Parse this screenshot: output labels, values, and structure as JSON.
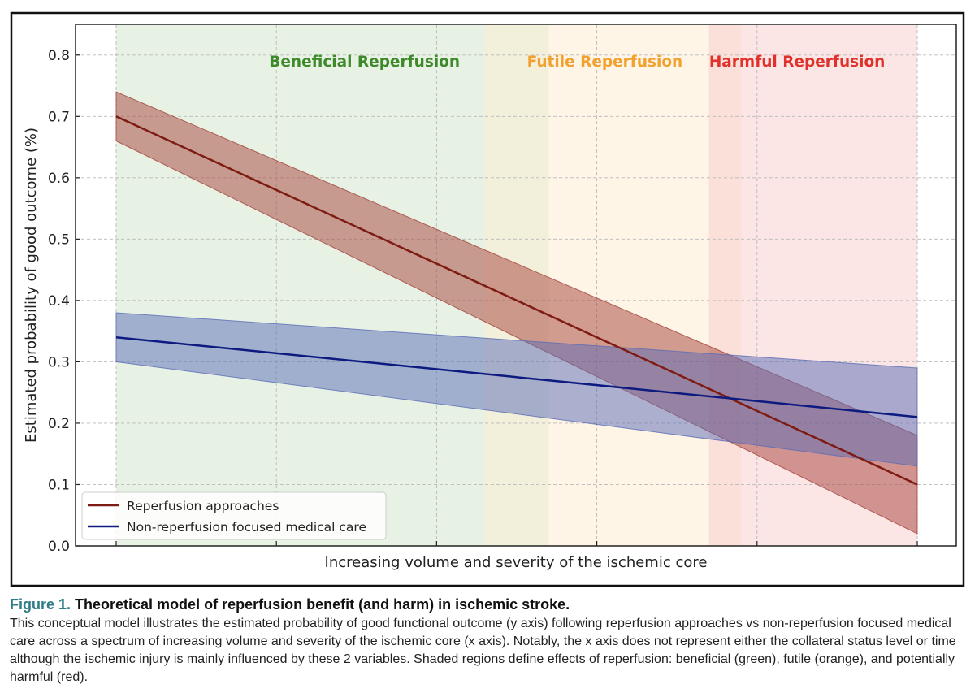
{
  "chart_data": {
    "type": "line",
    "title": "",
    "xlabel": "Increasing volume and severity of the ischemic core",
    "ylabel": "Estimated probability of good outcome (%)",
    "xlim": [
      0,
      1
    ],
    "ylim": [
      0,
      0.85
    ],
    "yticks": [
      "0.0",
      "0.1",
      "0.2",
      "0.3",
      "0.4",
      "0.5",
      "0.6",
      "0.7",
      "0.8"
    ],
    "grid": true,
    "regions": [
      {
        "name": "Beneficial Reperfusion",
        "x0": 0.0,
        "x1": 0.54,
        "color": "#cfe6cc",
        "label_color": "#3e8a2a"
      },
      {
        "name": "Futile Reperfusion",
        "x0": 0.46,
        "x1": 0.78,
        "color": "#fdebcf",
        "label_color": "#f2a12e"
      },
      {
        "name": "Harmful Reperfusion",
        "x0": 0.74,
        "x1": 1.0,
        "color": "#f8cccc",
        "label_color": "#e0312b"
      }
    ],
    "series": [
      {
        "name": "Reperfusion approaches",
        "color": "#7e1b12",
        "band_color": "#a5423a",
        "x": [
          0,
          1
        ],
        "values": [
          0.7,
          0.1
        ],
        "lower": [
          0.66,
          0.02
        ],
        "upper": [
          0.74,
          0.18
        ]
      },
      {
        "name": "Non-reperfusion focused medical care",
        "color": "#0d1a80",
        "band_color": "#5a6bb5",
        "x": [
          0,
          1
        ],
        "values": [
          0.34,
          0.21
        ],
        "lower": [
          0.3,
          0.13
        ],
        "upper": [
          0.38,
          0.29
        ]
      }
    ],
    "legend_position": "bottom-left"
  },
  "caption": {
    "label": "Figure 1.",
    "title": "Theoretical model of reperfusion benefit (and harm) in ischemic stroke.",
    "body": "This conceptual model illustrates the estimated probability of good functional outcome (y axis) following reperfusion approaches vs non-reperfusion focused medical care across a spectrum of increasing volume and severity of the ischemic core (x axis). Notably, the x axis does not represent either the collateral status level or time although the ischemic injury is mainly influenced by these 2 variables. Shaded regions define effects of reperfusion: beneficial (green), futile (orange), and potentially harmful (red)."
  }
}
